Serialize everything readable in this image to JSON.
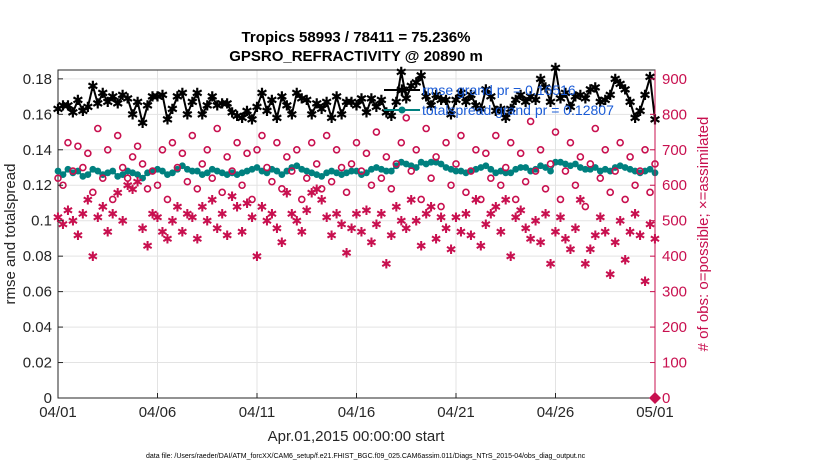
{
  "chart_data": {
    "type": "line",
    "title": "Tropics 58993 / 78411 = 75.236%",
    "subtitle": "GPSRO_REFRACTIVITY @ 20890 m",
    "xlabel": "Apr.01,2015 00:00:00 start",
    "ylabel": "rmse and totalspread",
    "y2label": "# of obs: o=possible; ×=assimilated",
    "xlim": [
      0,
      30
    ],
    "ylim": [
      0,
      0.185
    ],
    "y2lim": [
      0,
      925
    ],
    "xticks": [
      {
        "v": 0,
        "label": "04/01"
      },
      {
        "v": 5,
        "label": "04/06"
      },
      {
        "v": 10,
        "label": "04/11"
      },
      {
        "v": 15,
        "label": "04/16"
      },
      {
        "v": 20,
        "label": "04/21"
      },
      {
        "v": 25,
        "label": "04/26"
      },
      {
        "v": 30,
        "label": "05/01"
      }
    ],
    "yticks": [
      {
        "v": 0,
        "label": "0"
      },
      {
        "v": 0.02,
        "label": "0.02"
      },
      {
        "v": 0.04,
        "label": "0.04"
      },
      {
        "v": 0.06,
        "label": "0.06"
      },
      {
        "v": 0.08,
        "label": "0.08"
      },
      {
        "v": 0.1,
        "label": "0.1"
      },
      {
        "v": 0.12,
        "label": "0.12"
      },
      {
        "v": 0.14,
        "label": "0.14"
      },
      {
        "v": 0.16,
        "label": "0.16"
      },
      {
        "v": 0.18,
        "label": "0.18"
      }
    ],
    "y2ticks": [
      {
        "v": 0,
        "label": "0"
      },
      {
        "v": 100,
        "label": "100"
      },
      {
        "v": 200,
        "label": "200"
      },
      {
        "v": 300,
        "label": "300"
      },
      {
        "v": 400,
        "label": "400"
      },
      {
        "v": 500,
        "label": "500"
      },
      {
        "v": 600,
        "label": "600"
      },
      {
        "v": 700,
        "label": "700"
      },
      {
        "v": 800,
        "label": "800"
      },
      {
        "v": 900,
        "label": "900"
      }
    ],
    "grid": true,
    "legend_position": "top-right",
    "legend": [
      {
        "label": "rmse grand pr = 0.16516",
        "color": "#000000",
        "marker": "star"
      },
      {
        "label": "totalspread grand pr = 0.12807",
        "color": "#00807f",
        "marker": "circle"
      }
    ],
    "series": [
      {
        "name": "rmse",
        "axis": "left",
        "color": "#000000",
        "marker": "star",
        "x_start": 0,
        "x_step": 0.25,
        "values": [
          0.163,
          0.165,
          0.165,
          0.161,
          0.168,
          0.162,
          0.164,
          0.176,
          0.166,
          0.172,
          0.167,
          0.17,
          0.166,
          0.171,
          0.169,
          0.16,
          0.167,
          0.155,
          0.165,
          0.17,
          0.17,
          0.171,
          0.157,
          0.163,
          0.17,
          0.172,
          0.16,
          0.167,
          0.172,
          0.16,
          0.165,
          0.17,
          0.165,
          0.166,
          0.166,
          0.161,
          0.159,
          0.158,
          0.162,
          0.157,
          0.164,
          0.172,
          0.162,
          0.168,
          0.158,
          0.17,
          0.165,
          0.16,
          0.172,
          0.169,
          0.168,
          0.16,
          0.166,
          0.163,
          0.167,
          0.158,
          0.17,
          0.16,
          0.167,
          0.167,
          0.165,
          0.169,
          0.161,
          0.169,
          0.164,
          0.168,
          0.161,
          0.159,
          0.167,
          0.184,
          0.169,
          0.176,
          0.178,
          0.182,
          0.17,
          0.165,
          0.171,
          0.168,
          0.168,
          0.16,
          0.168,
          0.172,
          0.167,
          0.171,
          0.165,
          0.163,
          0.174,
          0.17,
          0.162,
          0.163,
          0.158,
          0.163,
          0.168,
          0.171,
          0.167,
          0.17,
          0.168,
          0.18,
          0.175,
          0.167,
          0.186,
          0.169,
          0.172,
          0.164,
          0.17,
          0.171,
          0.169,
          0.174,
          0.175,
          0.167,
          0.168,
          0.171,
          0.18,
          0.177,
          0.174,
          0.167,
          0.158,
          0.162,
          0.171,
          0.181,
          0.157
        ]
      },
      {
        "name": "totalspread",
        "axis": "left",
        "color": "#00807f",
        "marker": "circle",
        "x_start": 0,
        "x_step": 0.25,
        "values": [
          0.128,
          0.126,
          0.129,
          0.127,
          0.128,
          0.125,
          0.126,
          0.129,
          0.128,
          0.126,
          0.127,
          0.128,
          0.125,
          0.126,
          0.128,
          0.127,
          0.126,
          0.124,
          0.127,
          0.128,
          0.129,
          0.128,
          0.126,
          0.127,
          0.129,
          0.131,
          0.129,
          0.128,
          0.128,
          0.126,
          0.127,
          0.129,
          0.128,
          0.127,
          0.126,
          0.127,
          0.126,
          0.127,
          0.128,
          0.129,
          0.13,
          0.128,
          0.127,
          0.129,
          0.128,
          0.126,
          0.128,
          0.13,
          0.131,
          0.129,
          0.128,
          0.127,
          0.126,
          0.125,
          0.127,
          0.128,
          0.127,
          0.126,
          0.127,
          0.128,
          0.128,
          0.126,
          0.127,
          0.129,
          0.13,
          0.129,
          0.128,
          0.128,
          0.131,
          0.133,
          0.132,
          0.131,
          0.13,
          0.133,
          0.132,
          0.133,
          0.133,
          0.132,
          0.13,
          0.129,
          0.128,
          0.128,
          0.127,
          0.128,
          0.129,
          0.13,
          0.131,
          0.129,
          0.127,
          0.128,
          0.127,
          0.127,
          0.129,
          0.13,
          0.13,
          0.128,
          0.129,
          0.131,
          0.13,
          0.128,
          0.133,
          0.133,
          0.132,
          0.131,
          0.132,
          0.13,
          0.129,
          0.129,
          0.13,
          0.128,
          0.129,
          0.128,
          0.13,
          0.131,
          0.13,
          0.129,
          0.128,
          0.127,
          0.128,
          0.129,
          0.127
        ]
      },
      {
        "name": "possible obs",
        "axis": "right",
        "color": "#c8104f",
        "marker": "ring",
        "x_start": 0,
        "x_step": 0.25,
        "values": [
          620,
          600,
          720,
          640,
          710,
          650,
          690,
          580,
          760,
          620,
          700,
          560,
          740,
          650,
          620,
          680,
          710,
          660,
          590,
          640,
          600,
          700,
          560,
          720,
          650,
          690,
          610,
          740,
          590,
          660,
          700,
          620,
          760,
          580,
          680,
          640,
          720,
          600,
          690,
          560,
          700,
          740,
          650,
          610,
          720,
          590,
          680,
          640,
          700,
          560,
          620,
          720,
          660,
          590,
          740,
          610,
          700,
          650,
          580,
          660,
          720,
          640,
          690,
          600,
          750,
          620,
          680,
          590,
          660,
          720,
          790,
          640,
          700,
          560,
          760,
          620,
          680,
          540,
          720,
          600,
          660,
          740,
          580,
          640,
          700,
          560,
          690,
          620,
          740,
          600,
          650,
          720,
          560,
          690,
          610,
          780,
          640,
          700,
          590,
          660,
          750,
          560,
          640,
          720,
          600,
          680,
          540,
          660,
          760,
          620,
          700,
          580,
          640,
          720,
          560,
          680,
          600,
          640,
          700,
          580,
          660
        ]
      },
      {
        "name": "assimilated obs",
        "axis": "right",
        "color": "#c8104f",
        "marker": "asterisk",
        "x_start": 0,
        "x_step": 0.25,
        "values": [
          510,
          490,
          530,
          500,
          460,
          520,
          560,
          400,
          510,
          540,
          470,
          520,
          580,
          500,
          600,
          590,
          610,
          480,
          430,
          520,
          510,
          470,
          450,
          500,
          540,
          470,
          520,
          510,
          450,
          540,
          500,
          560,
          480,
          520,
          460,
          570,
          540,
          470,
          550,
          510,
          400,
          540,
          500,
          520,
          480,
          440,
          580,
          520,
          500,
          470,
          530,
          580,
          590,
          560,
          510,
          460,
          520,
          490,
          410,
          480,
          520,
          470,
          530,
          440,
          490,
          520,
          380,
          460,
          540,
          500,
          480,
          560,
          500,
          430,
          520,
          540,
          450,
          510,
          480,
          420,
          510,
          470,
          520,
          460,
          560,
          430,
          490,
          520,
          540,
          470,
          560,
          400,
          510,
          530,
          480,
          450,
          500,
          440,
          520,
          380,
          470,
          510,
          450,
          420,
          480,
          560,
          380,
          420,
          460,
          510,
          470,
          350,
          440,
          500,
          390,
          470,
          520,
          460,
          330,
          490,
          450
        ]
      }
    ],
    "footnote": "data file: /Users/raeder/DAI/ATM_forcXX/CAM6_setup/f.e21.FHIST_BGC.f09_025.CAM6assim.011/Diags_NTrS_2015-04/obs_diag_output.nc"
  }
}
